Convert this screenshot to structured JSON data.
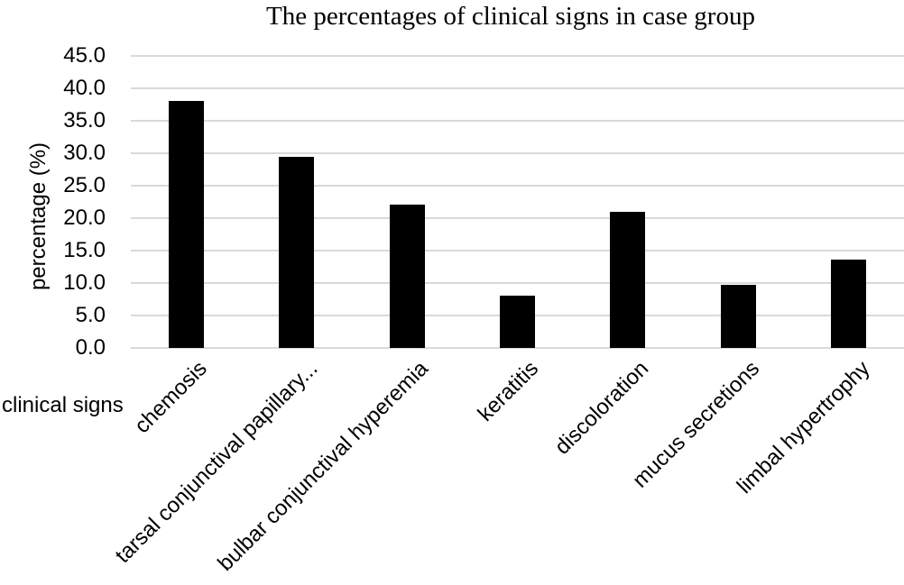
{
  "chart_data": {
    "type": "bar",
    "title": "The percentages of clinical signs in case group",
    "xlabel": "clinical signs",
    "ylabel": "percentage (%)",
    "categories": [
      "chemosis",
      "tarsal conjunctival papillary...",
      "bulbar conjunctival hyperemia",
      "keratitis",
      "discoloration",
      "mucus secretions",
      "limbal hypertrophy"
    ],
    "values": [
      38.0,
      29.4,
      22.1,
      8.0,
      21.0,
      9.7,
      13.6
    ],
    "yticks": [
      "45.0",
      "40.0",
      "35.0",
      "30.0",
      "25.0",
      "20.0",
      "15.0",
      "10.0",
      "5.0",
      "0.0"
    ],
    "ylim": [
      0,
      45
    ],
    "grid": "horizontal",
    "legend": "none",
    "colors": {
      "bar": "#000000",
      "gridline": "#d9d9d9",
      "text": "#000000",
      "background": "#ffffff"
    }
  }
}
